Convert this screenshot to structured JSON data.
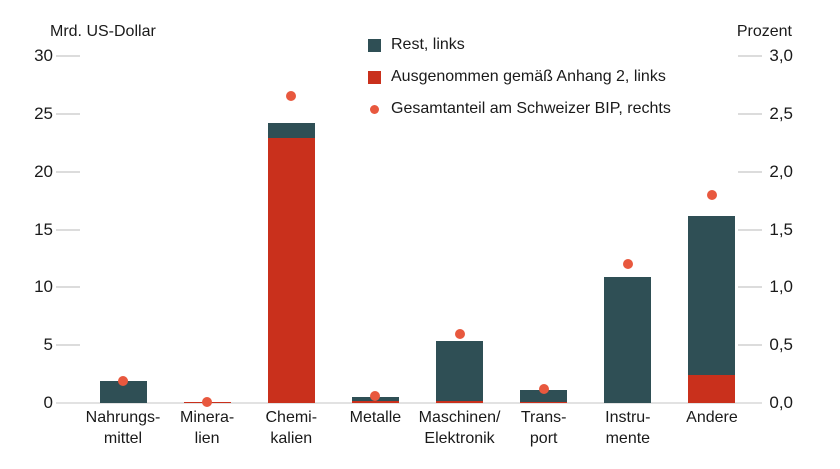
{
  "chart_data": {
    "type": "bar",
    "stacked": true,
    "dual_axis": true,
    "background_color": "#ffffff",
    "grid": "ticks-only",
    "legend_position": "top-center",
    "categories": [
      [
        "Nahrungs-",
        "mittel"
      ],
      [
        "Minera-",
        "lien"
      ],
      [
        "Chemi-",
        "kalien"
      ],
      [
        "Metalle"
      ],
      [
        "Maschinen/",
        "Elektronik"
      ],
      [
        "Trans-",
        "port"
      ],
      [
        "Instru-",
        "mente"
      ],
      [
        "Andere"
      ]
    ],
    "series": [
      {
        "name": "Ausgenommen gemäß Anhang 2, links",
        "type": "bar",
        "axis": "left",
        "color": "#c9301c",
        "values": [
          0,
          0.1,
          22.9,
          0.15,
          0.2,
          0.1,
          0,
          2.4
        ]
      },
      {
        "name": "Rest, links",
        "type": "bar",
        "axis": "left",
        "color": "#2f4f55",
        "values": [
          1.9,
          0,
          1.3,
          0.4,
          5.2,
          1.0,
          10.9,
          13.8
        ]
      },
      {
        "name": "Gesamtanteil am Schweizer BIP, rechts",
        "type": "scatter",
        "axis": "right",
        "color": "#e8583e",
        "values": [
          0.19,
          0.01,
          2.65,
          0.06,
          0.6,
          0.12,
          1.2,
          1.8
        ]
      }
    ],
    "left_axis": {
      "title": "Mrd. US-Dollar",
      "min": 0,
      "max": 30,
      "step": 5,
      "tick_labels": [
        "0",
        "5",
        "10",
        "15",
        "20",
        "25",
        "30"
      ]
    },
    "right_axis": {
      "title": "Prozent",
      "min": 0,
      "max": 3,
      "step": 0.5,
      "tick_labels": [
        "0,0",
        "0,5",
        "1,0",
        "1,5",
        "2,0",
        "2,5",
        "3,0"
      ]
    },
    "legend": [
      {
        "label": "Rest, links",
        "marker": "square",
        "color": "#2f4f55"
      },
      {
        "label": "Ausgenommen gemäß Anhang 2, links",
        "marker": "square",
        "color": "#c9301c"
      },
      {
        "label": "Gesamtanteil am Schweizer BIP, rechts",
        "marker": "dot",
        "color": "#e8583e"
      }
    ]
  }
}
